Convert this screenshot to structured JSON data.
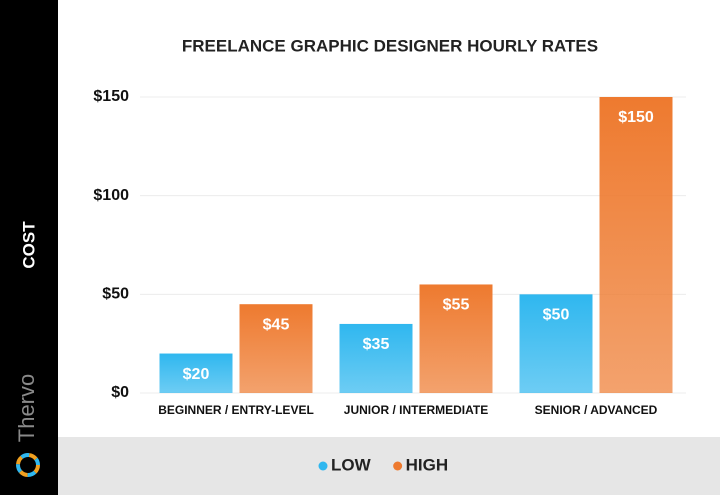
{
  "brand": "Thervo",
  "chart_data": {
    "type": "bar",
    "title": "FREELANCE GRAPHIC DESIGNER HOURLY RATES",
    "ylabel": "COST",
    "categories": [
      "BEGINNER / ENTRY-LEVEL",
      "JUNIOR / INTERMEDIATE",
      "SENIOR / ADVANCED"
    ],
    "series": [
      {
        "name": "LOW",
        "color": "#2fb7ef",
        "values": [
          20,
          35,
          50
        ],
        "value_labels": [
          "$20",
          "$35",
          "$50"
        ]
      },
      {
        "name": "HIGH",
        "color": "#ee7a2f",
        "values": [
          45,
          55,
          150
        ],
        "value_labels": [
          "$45",
          "$55",
          "$150"
        ]
      }
    ],
    "ylim": [
      0,
      150
    ],
    "yticks": [
      {
        "value": 0,
        "label": "$0"
      },
      {
        "value": 50,
        "label": "$50"
      },
      {
        "value": 100,
        "label": "$100"
      },
      {
        "value": 150,
        "label": "$150"
      }
    ],
    "grid": true
  }
}
